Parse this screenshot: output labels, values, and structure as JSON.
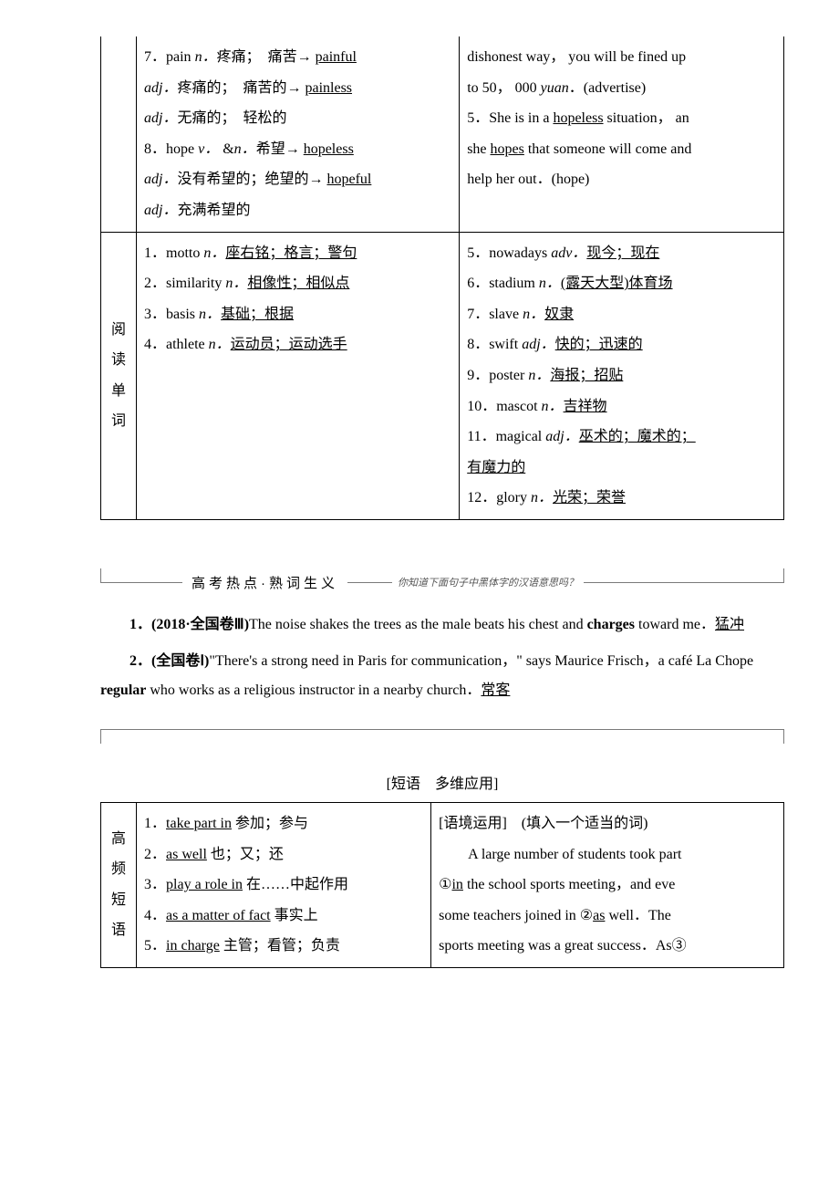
{
  "table1": {
    "row1": {
      "col1_items": [
        {
          "num": "7．",
          "body": "pain",
          "pos": "n．",
          "def": "疼痛；　痛苦→ ",
          "u": "painful"
        },
        {
          "pos": "adj．",
          "def": "疼痛的；　痛苦的→ ",
          "u": "painless"
        },
        {
          "pos": "adj．",
          "def": "无痛的；　轻松的"
        },
        {
          "num": "8．",
          "body": "hope",
          "pos": "v．",
          "extra": " &",
          "pos2": "n．",
          "def": "希望→ ",
          "u": "hopeless"
        },
        {
          "pos": "adj．",
          "def": "没有希望的；绝望的→ ",
          "u": "hopeful"
        },
        {
          "pos": "adj．",
          "def": "充满希望的"
        }
      ],
      "col2_lines": [
        "dishonest way， you will be fined up",
        "to 50， 000 <i>yuan</i>．(advertise)",
        "5．She is in a <u>hopeless</u> situation， an",
        "she <u>hopes</u> that someone will come and",
        "help her out．(hope)"
      ]
    },
    "row2": {
      "label_chars": [
        "阅",
        "读",
        "单",
        "词"
      ],
      "col1_items": [
        {
          "num": "1．",
          "body": "motto",
          "pos": "n．",
          "uDef": "座右铭；格言；警句"
        },
        {
          "num": "2．",
          "body": "similarity",
          "pos": "n．",
          "uDef": "相像性；相似点"
        },
        {
          "num": "3．",
          "body": "basis",
          "pos": "n．",
          "uDef": "基础；根据"
        },
        {
          "num": "4．",
          "body": "athlete",
          "pos": "n．",
          "uDef": "运动员；运动选手"
        }
      ],
      "col2_items": [
        {
          "num": "5．",
          "body": "nowadays",
          "pos": "adv．",
          "uDef": "现今；现在"
        },
        {
          "num": "6．",
          "body": "stadium",
          "pos": "n．",
          "uDef": "(露天大型)体育场"
        },
        {
          "num": "7．",
          "body": "slave",
          "pos": "n．",
          "uDef": "奴隶"
        },
        {
          "num": "8．",
          "body": "swift",
          "pos": "adj．",
          "uDef": "快的；迅速的"
        },
        {
          "num": "9．",
          "body": "poster",
          "pos": "n．",
          "uDef": "海报；招贴"
        },
        {
          "num": "10．",
          "body": "mascot",
          "pos": "n．",
          "uDef": "吉祥物"
        },
        {
          "num": "11．",
          "body": "magical",
          "pos": "adj．",
          "uDef": "巫术的；魔术的；"
        },
        {
          "uDef": "有魔力的"
        },
        {
          "num": "12．",
          "body": "glory",
          "pos": "n．",
          "uDef": "光荣；荣誉"
        }
      ]
    }
  },
  "banner": {
    "title": "高考热点·熟词生义",
    "sub": "你知道下面句子中黑体字的汉语意思吗？"
  },
  "ex1": {
    "num": "1．",
    "src": "(2018·全国卷Ⅲ)",
    "text": "The noise shakes the trees as the male beats his chest and ",
    "bold": "charges",
    "tail": " toward me．",
    "ans": "猛冲"
  },
  "ex2": {
    "num": "2．",
    "src": "(全国卷Ⅰ)",
    "open": "\"There's a strong need in Paris for communication，\" says Maurice Frisch，a café La Chope ",
    "bold": "regular",
    "tail": " who works as a religious instructor in a nearby church．",
    "ans": "常客"
  },
  "sectionTitle": "[短语　多维应用]",
  "table2": {
    "label_chars": [
      "高",
      "频",
      "短",
      "语"
    ],
    "col1_items": [
      {
        "num": "1．",
        "u": "take part in",
        "def": " 参加；参与"
      },
      {
        "num": "2．",
        "u": "as well",
        "def": " 也；又；还"
      },
      {
        "num": "3．",
        "u": "play a role in",
        "def": " 在……中起作用"
      },
      {
        "num": "4．",
        "u": "as a matter of fact",
        "def": " 事实上"
      },
      {
        "num": "5．",
        "u": "in charge",
        "def": " 主管；看管；负责"
      }
    ],
    "col2": {
      "header": "[语境运用]　(填入一个适当的词)",
      "text1": "　　A large number of students took part",
      "text2a": " ①",
      "text2u": "in",
      "text2b": " the school sports meeting，and eve",
      "text3a": "some teachers joined in ②",
      "text3u": "as",
      "text3b": " well．The",
      "text4": "sports meeting was a great success．As③"
    }
  }
}
